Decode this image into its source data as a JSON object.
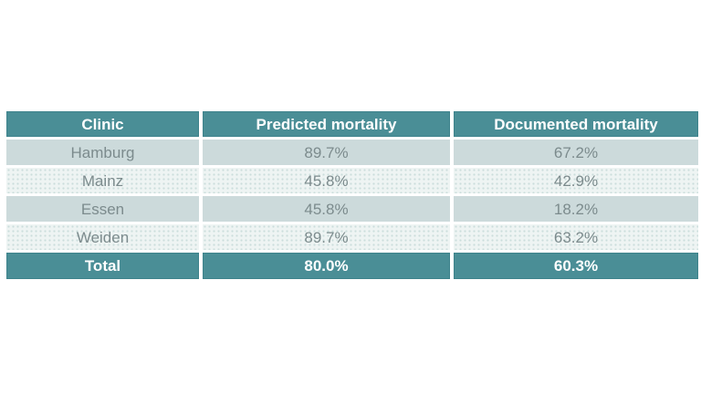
{
  "slide": {
    "background": "#FFFFFF"
  },
  "table": {
    "header": {
      "clinic": "Clinic",
      "predicted": "Predicted mortality",
      "documented": "Documented mortality"
    },
    "rows": [
      {
        "clinic": "Hamburg",
        "predicted": "89.7%",
        "documented": "67.2%"
      },
      {
        "clinic": "Mainz",
        "predicted": "45.8%",
        "documented": "42.9%"
      },
      {
        "clinic": "Essen",
        "predicted": "45.8%",
        "documented": "18.2%"
      },
      {
        "clinic": "Weiden",
        "predicted": "89.7%",
        "documented": "63.2%"
      }
    ],
    "total": {
      "clinic": "Total",
      "predicted": "80.0%",
      "documented": "60.3%"
    },
    "colors": {
      "slide_bg": "#FFFFFF",
      "header_bg": "#4A8E96",
      "header_border": "#3E838C",
      "header_text": "#FFFFFF",
      "row_solid_bg": "#CCDADB",
      "row_dotted_bg": "#EEF4F3",
      "row_dot_color": "#CADDDB",
      "row_text": "#7C8B8D",
      "total_bg": "#4A8E96",
      "total_text": "#FFFFFF",
      "separator": "#FFFFFF"
    }
  },
  "chart_data": {
    "type": "table",
    "title": "",
    "columns": [
      "Clinic",
      "Predicted mortality",
      "Documented mortality"
    ],
    "rows": [
      [
        "Hamburg",
        "89.7%",
        "67.2%"
      ],
      [
        "Mainz",
        "45.8%",
        "42.9%"
      ],
      [
        "Essen",
        "45.8%",
        "18.2%"
      ],
      [
        "Weiden",
        "89.7%",
        "63.2%"
      ],
      [
        "Total",
        "80.0%",
        "60.3%"
      ]
    ],
    "categories": [
      "Hamburg",
      "Mainz",
      "Essen",
      "Weiden",
      "Total"
    ],
    "series": [
      {
        "name": "Predicted mortality",
        "values": [
          89.7,
          45.8,
          45.8,
          89.7,
          80.0
        ]
      },
      {
        "name": "Documented mortality",
        "values": [
          67.2,
          42.9,
          18.2,
          63.2,
          60.3
        ]
      }
    ],
    "legend_position": "none",
    "grid": false
  }
}
